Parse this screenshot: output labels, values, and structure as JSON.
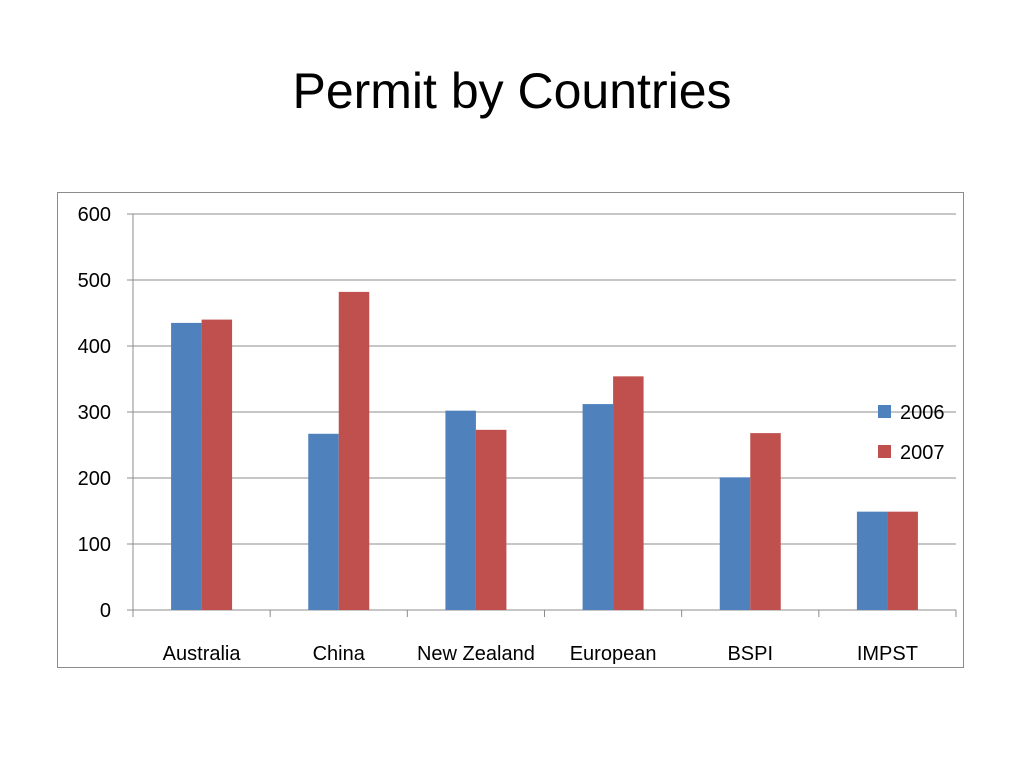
{
  "title": "Permit by Countries",
  "chart_data": {
    "type": "bar",
    "title": "",
    "xlabel": "",
    "ylabel": "",
    "categories": [
      "Australia",
      "China",
      "New Zealand",
      "European",
      "BSPI",
      "IMPST"
    ],
    "series": [
      {
        "name": "2006",
        "color": "#4f81bd",
        "values": [
          435,
          267,
          302,
          312,
          201,
          149
        ]
      },
      {
        "name": "2007",
        "color": "#c0504d",
        "values": [
          440,
          482,
          273,
          354,
          268,
          149
        ]
      }
    ],
    "ylim": [
      0,
      600
    ],
    "yticks": [
      "0",
      "100",
      "200",
      "300",
      "400",
      "500",
      "600"
    ],
    "grid": true,
    "legend": "right"
  }
}
